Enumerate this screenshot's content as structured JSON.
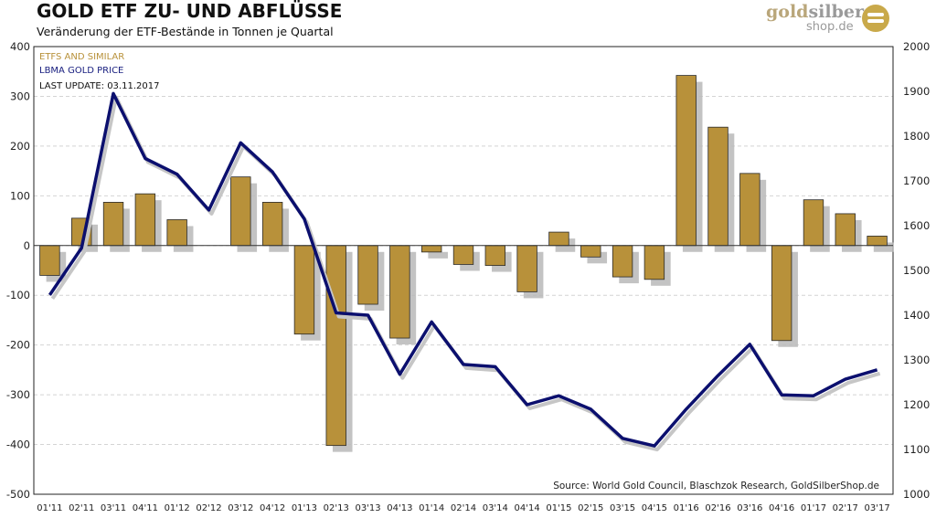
{
  "header": {
    "title": "GOLD ETF ZU- UND ABFLÜSSE",
    "subtitle": "Veränderung der ETF-Bestände in Tonnen je Quartal"
  },
  "logo": {
    "gold": "gold",
    "silber": "silber",
    "sub": "shop.de"
  },
  "legend": {
    "etf": "ETFS AND SIMILAR",
    "price": "LBMA GOLD PRICE",
    "update": "LAST UPDATE: 03.11.2017"
  },
  "source": "Source: World Gold Council, Blaschzok Research, GoldSilberShop.de",
  "colors": {
    "bar": "#b8913a",
    "bar_border": "#2a2a2a",
    "shadow": "#b8b8b8",
    "line": "#0b0f6e",
    "legend_etf": "#b8913a",
    "legend_price": "#1a2080",
    "grid": "#d4d4d4"
  },
  "chart_data": {
    "type": "bar",
    "title": "GOLD ETF ZU- UND ABFLÜSSE",
    "subtitle": "Veränderung der ETF-Bestände in Tonnen je Quartal",
    "categories": [
      "01'11",
      "02'11",
      "03'11",
      "04'11",
      "01'12",
      "02'12",
      "03'12",
      "04'12",
      "01'13",
      "02'13",
      "03'13",
      "04'13",
      "01'14",
      "02'14",
      "03'14",
      "04'14",
      "01'15",
      "02'15",
      "03'15",
      "04'15",
      "01'16",
      "02'16",
      "03'16",
      "04'16",
      "01'17",
      "02'17",
      "03'17"
    ],
    "series": [
      {
        "name": "ETFS AND SIMILAR",
        "type": "bar",
        "axis": "left",
        "values": [
          -60,
          55,
          87,
          104,
          52,
          0,
          138,
          87,
          -178,
          -402,
          -118,
          -186,
          -13,
          -38,
          -40,
          -93,
          27,
          -23,
          -63,
          -68,
          342,
          238,
          145,
          -191,
          92,
          64,
          19
        ]
      },
      {
        "name": "LBMA GOLD PRICE",
        "type": "line",
        "axis": "right",
        "values": [
          1445,
          1550,
          1895,
          1750,
          1715,
          1635,
          1785,
          1720,
          1615,
          1405,
          1400,
          1268,
          1385,
          1290,
          1285,
          1200,
          1220,
          1190,
          1125,
          1108,
          1190,
          1265,
          1335,
          1222,
          1220,
          1257,
          1278
        ]
      }
    ],
    "y_left": {
      "min": -500,
      "max": 400,
      "ticks": [
        -500,
        -400,
        -300,
        -200,
        -100,
        0,
        100,
        200,
        300,
        400
      ]
    },
    "y_right": {
      "min": 1000,
      "max": 2000,
      "ticks": [
        1000,
        1100,
        1200,
        1300,
        1400,
        1500,
        1600,
        1700,
        1800,
        1900,
        2000
      ]
    },
    "grid": true,
    "legend_position": "top-left"
  }
}
